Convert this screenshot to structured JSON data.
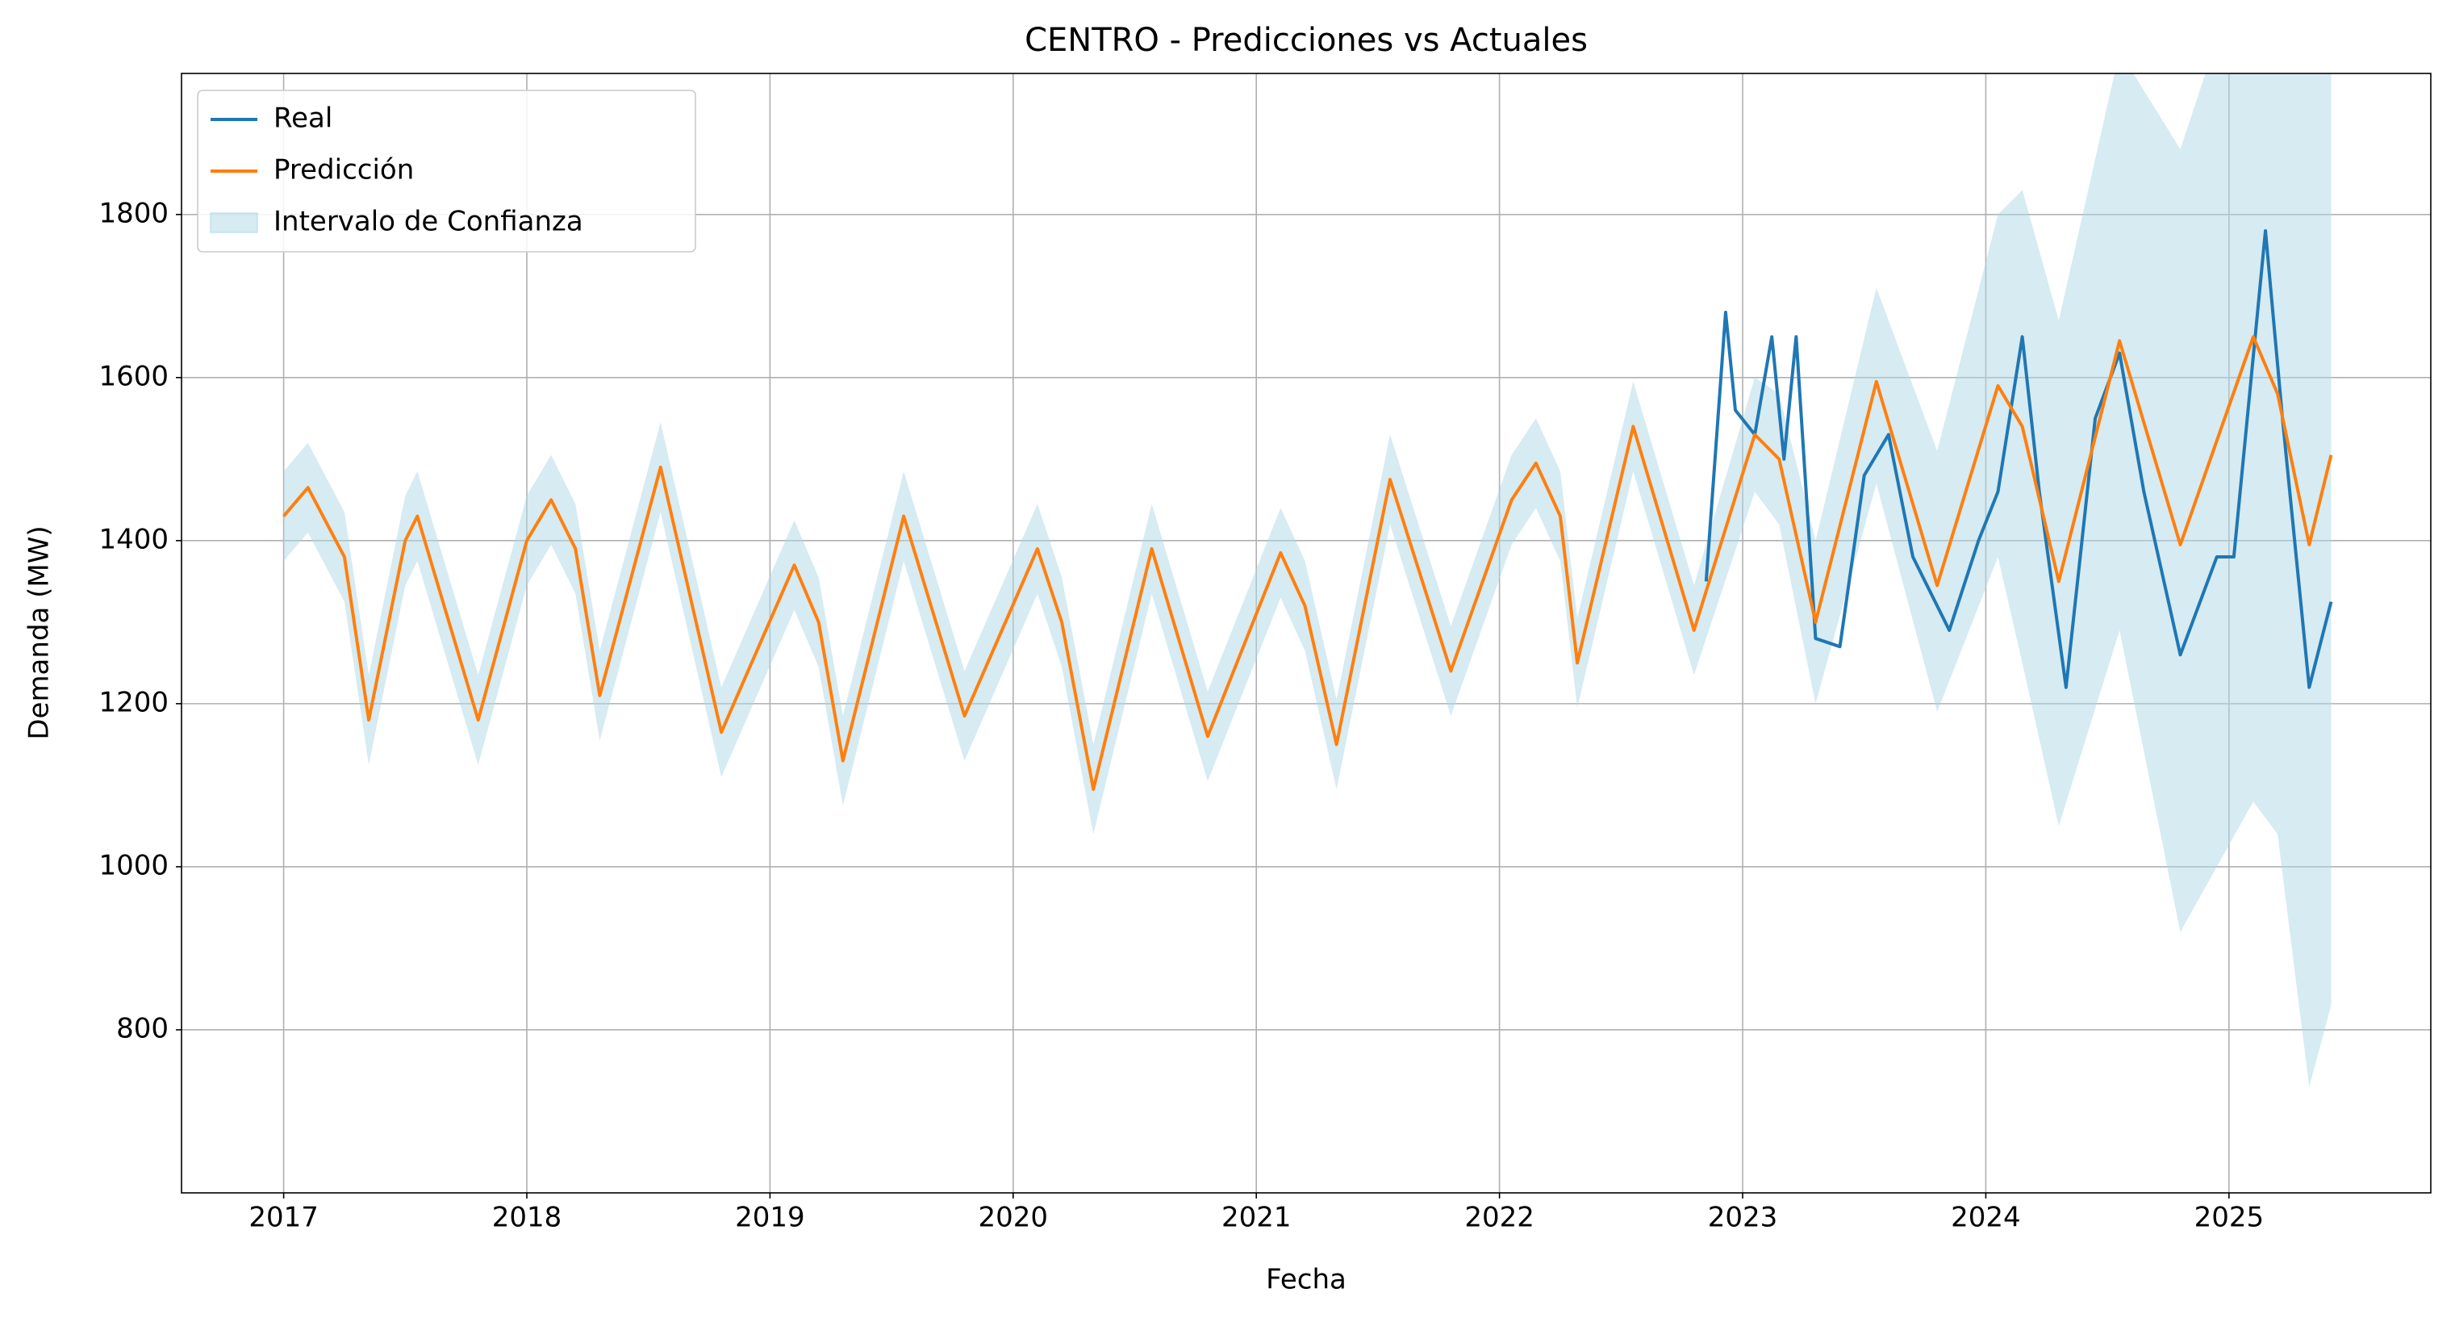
{
  "chart_data": {
    "type": "line",
    "title": "CENTRO - Predicciones vs Actuales",
    "xlabel": "Fecha",
    "ylabel": "Demanda (MW)",
    "xlim": [
      2016.58,
      2025.83
    ],
    "xticks": [
      2017,
      2018,
      2019,
      2020,
      2021,
      2022,
      2023,
      2024,
      2025
    ],
    "ylim": [
      600,
      1973
    ],
    "yticks": [
      800,
      1000,
      1200,
      1400,
      1600,
      1800
    ],
    "grid": true,
    "legend": "upper left",
    "series": [
      {
        "name": "Real",
        "color": "#1f77b4",
        "x": [
          2022.85,
          2022.93,
          2022.97,
          2023.05,
          2023.12,
          2023.17,
          2023.22,
          2023.3,
          2023.4,
          2023.5,
          2023.6,
          2023.7,
          2023.85,
          2023.97,
          2024.05,
          2024.15,
          2024.22,
          2024.33,
          2024.45,
          2024.55,
          2024.65,
          2024.8,
          2024.95,
          2025.02,
          2025.15,
          2025.22,
          2025.33,
          2025.42
        ],
        "values": [
          1350,
          1680,
          1560,
          1530,
          1650,
          1500,
          1650,
          1280,
          1270,
          1480,
          1530,
          1380,
          1290,
          1400,
          1460,
          1650,
          1460,
          1220,
          1550,
          1630,
          1460,
          1260,
          1380,
          1380,
          1780,
          1550,
          1220,
          1325
        ]
      },
      {
        "name": "Predicción",
        "color": "#ff7f0e",
        "x": [
          2017.0,
          2017.1,
          2017.25,
          2017.35,
          2017.5,
          2017.55,
          2017.8,
          2018.0,
          2018.1,
          2018.2,
          2018.3,
          2018.55,
          2018.8,
          2019.1,
          2019.2,
          2019.3,
          2019.55,
          2019.8,
          2020.1,
          2020.2,
          2020.33,
          2020.57,
          2020.8,
          2021.1,
          2021.2,
          2021.33,
          2021.55,
          2021.8,
          2022.05,
          2022.15,
          2022.25,
          2022.32,
          2022.55,
          2022.8,
          2023.05,
          2023.15,
          2023.3,
          2023.55,
          2023.8,
          2024.05,
          2024.15,
          2024.3,
          2024.55,
          2024.8,
          2025.1,
          2025.2,
          2025.33,
          2025.42
        ],
        "values": [
          1430,
          1465,
          1380,
          1180,
          1400,
          1430,
          1180,
          1400,
          1450,
          1390,
          1210,
          1490,
          1165,
          1370,
          1300,
          1130,
          1430,
          1185,
          1390,
          1300,
          1095,
          1390,
          1160,
          1385,
          1320,
          1150,
          1475,
          1240,
          1450,
          1495,
          1430,
          1250,
          1540,
          1290,
          1530,
          1500,
          1300,
          1595,
          1345,
          1590,
          1540,
          1350,
          1645,
          1395,
          1650,
          1580,
          1395,
          1505
        ]
      }
    ],
    "band": {
      "name": "Intervalo de Confianza",
      "color": "#add8e6",
      "x": [
        2017.0,
        2017.1,
        2017.25,
        2017.35,
        2017.5,
        2017.55,
        2017.8,
        2018.0,
        2018.1,
        2018.2,
        2018.3,
        2018.55,
        2018.8,
        2019.1,
        2019.2,
        2019.3,
        2019.55,
        2019.8,
        2020.1,
        2020.2,
        2020.33,
        2020.57,
        2020.8,
        2021.1,
        2021.2,
        2021.33,
        2021.55,
        2021.8,
        2022.05,
        2022.15,
        2022.25,
        2022.32,
        2022.55,
        2022.8,
        2023.05,
        2023.15,
        2023.3,
        2023.55,
        2023.8,
        2024.05,
        2024.15,
        2024.3,
        2024.55,
        2024.8,
        2025.1,
        2025.2,
        2025.33,
        2025.42
      ],
      "upper": [
        1485,
        1520,
        1435,
        1235,
        1455,
        1485,
        1235,
        1455,
        1505,
        1445,
        1265,
        1545,
        1220,
        1425,
        1355,
        1185,
        1485,
        1240,
        1445,
        1355,
        1150,
        1445,
        1215,
        1440,
        1375,
        1205,
        1530,
        1295,
        1505,
        1550,
        1485,
        1305,
        1595,
        1345,
        1600,
        1580,
        1400,
        1710,
        1510,
        1800,
        1830,
        1670,
        2000,
        1880,
        2150,
        2100,
        2000,
        2150
      ],
      "lower": [
        1375,
        1410,
        1325,
        1125,
        1345,
        1375,
        1125,
        1345,
        1395,
        1335,
        1155,
        1435,
        1110,
        1315,
        1245,
        1075,
        1375,
        1130,
        1335,
        1245,
        1040,
        1335,
        1105,
        1330,
        1265,
        1095,
        1420,
        1185,
        1395,
        1440,
        1375,
        1195,
        1485,
        1235,
        1460,
        1420,
        1200,
        1470,
        1190,
        1380,
        1250,
        1050,
        1290,
        920,
        1080,
        1040,
        730,
        830
      ]
    }
  }
}
